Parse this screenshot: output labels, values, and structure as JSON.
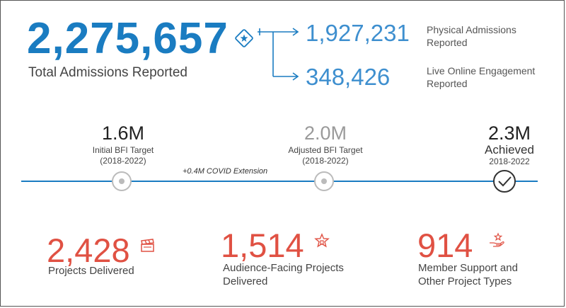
{
  "colors": {
    "accent_blue": "#1a7cc1",
    "light_blue": "#3e8fcf",
    "accent_red": "#e05143",
    "gray_text": "#9a9a9a",
    "timeline_blue": "#1a7cc1"
  },
  "total": {
    "value": "2,275,657",
    "label": "Total Admissions Reported",
    "icon": "ticket-icon"
  },
  "breakdown": [
    {
      "value": "1,927,231",
      "label_line1": "Physical Admissions",
      "label_line2": "Reported"
    },
    {
      "value": "348,426",
      "label_line1": "Live Online Engagement",
      "label_line2": "Reported"
    }
  ],
  "timeline": {
    "covid_extension": "+0.4M COVID Extension",
    "milestones": [
      {
        "value": "1.6M",
        "label": "Initial BFI Target",
        "period": "(2018-2022)"
      },
      {
        "value": "2.0M",
        "label": "Adjusted BFI Target",
        "period": "(2018-2022)"
      },
      {
        "value": "2.3M",
        "label": "Achieved",
        "period": "2018-2022"
      }
    ]
  },
  "stats": [
    {
      "value": "2,428",
      "label_line1": "Projects Delivered",
      "label_line2": "",
      "icon": "clapperboard-icon"
    },
    {
      "value": "1,514",
      "label_line1": "Audience-Facing Projects",
      "label_line2": "Delivered",
      "icon": "star-award-icon"
    },
    {
      "value": "914",
      "label_line1": "Member Support and",
      "label_line2": "Other Project Types",
      "icon": "hand-star-icon"
    }
  ]
}
